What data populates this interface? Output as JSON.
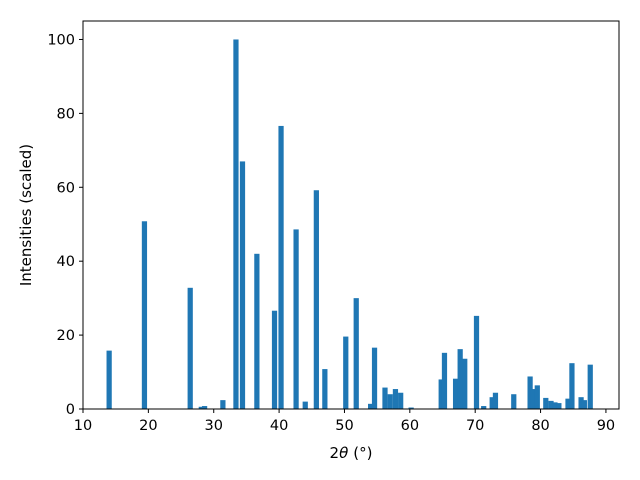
{
  "chart_data": {
    "type": "bar",
    "title": "",
    "xlabel": {
      "theta": "θ",
      "unit": "(°)"
    },
    "xlabel_prefix": "2",
    "ylabel": "Intensities (scaled)",
    "xlim": [
      10,
      92
    ],
    "ylim": [
      0,
      105
    ],
    "xticks": [
      10,
      20,
      30,
      40,
      50,
      60,
      70,
      80,
      90
    ],
    "yticks": [
      0,
      20,
      40,
      60,
      80,
      100
    ],
    "grid": false,
    "bar_width": 0.8,
    "bar_color": "#1f77b4",
    "x": [
      14.0,
      19.4,
      26.4,
      28.1,
      28.6,
      31.4,
      33.4,
      34.4,
      36.6,
      39.3,
      40.3,
      42.6,
      44.0,
      45.7,
      47.0,
      50.2,
      51.8,
      54.0,
      54.6,
      56.2,
      57.0,
      57.8,
      58.6,
      60.2,
      64.8,
      65.3,
      67.0,
      67.7,
      68.4,
      70.2,
      71.3,
      72.6,
      73.1,
      75.9,
      78.4,
      78.9,
      79.5,
      80.8,
      81.6,
      82.2,
      82.8,
      84.2,
      84.8,
      86.2,
      86.7,
      87.6
    ],
    "values": [
      15.8,
      50.8,
      32.8,
      0.6,
      0.8,
      2.4,
      100.0,
      67.0,
      42.0,
      26.6,
      76.6,
      48.6,
      2.0,
      59.2,
      10.8,
      19.6,
      30.0,
      1.4,
      16.6,
      5.8,
      4.0,
      5.4,
      4.4,
      0.4,
      8.0,
      15.2,
      8.2,
      16.2,
      13.6,
      25.2,
      0.8,
      3.2,
      4.4,
      4.0,
      8.8,
      5.4,
      6.4,
      3.0,
      2.2,
      1.8,
      1.6,
      2.8,
      12.4,
      3.2,
      2.4,
      12.0
    ]
  }
}
